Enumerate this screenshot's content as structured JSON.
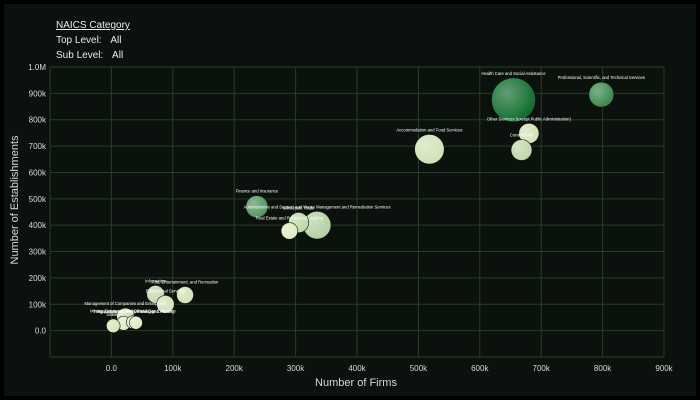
{
  "filters": {
    "header": "NAICS Category",
    "top_level_label": "Top Level:",
    "top_level_value": "All",
    "sub_level_label": "Sub Level:",
    "sub_level_value": "All"
  },
  "colors": {
    "background": "#0b120d",
    "grid": "#2b3a2e",
    "text": "#d6dbd8",
    "bubble_light": "#e9f2c8",
    "bubble_dark": "#0d6b2a"
  },
  "chart_data": {
    "type": "scatter",
    "title": "",
    "xlabel": "Number of Firms",
    "ylabel": "Number of Establishments",
    "xlim": [
      -100000,
      900000
    ],
    "ylim": [
      -100000,
      1000000
    ],
    "xticks": [
      0,
      100000,
      200000,
      300000,
      400000,
      500000,
      600000,
      700000,
      800000,
      900000
    ],
    "xtick_labels": [
      "0.0",
      "100k",
      "200k",
      "300k",
      "400k",
      "500k",
      "600k",
      "700k",
      "800k",
      "900k"
    ],
    "yticks": [
      0,
      100000,
      200000,
      300000,
      400000,
      500000,
      600000,
      700000,
      800000,
      900000,
      1000000
    ],
    "ytick_labels": [
      "0.0",
      "100k",
      "200k",
      "300k",
      "400k",
      "500k",
      "600k",
      "700k",
      "800k",
      "900k",
      "1.0M"
    ],
    "grid": true,
    "note": "bubble size and color depth represent relative magnitude (darker green = larger)",
    "points": [
      {
        "label": "Health Care and Social Assistance",
        "x": 655000,
        "y": 875000,
        "size": 1.0,
        "shade": 1.0
      },
      {
        "label": "Professional, Scientific, and Technical Services",
        "x": 798000,
        "y": 895000,
        "size": 0.47,
        "shade": 0.8
      },
      {
        "label": "Accommodation and Food Services",
        "x": 518000,
        "y": 688000,
        "size": 0.6,
        "shade": 0.12
      },
      {
        "label": "Other Services (except Public Administration)",
        "x": 680000,
        "y": 748000,
        "size": 0.34,
        "shade": 0.12
      },
      {
        "label": "Construction",
        "x": 668000,
        "y": 685000,
        "size": 0.36,
        "shade": 0.2
      },
      {
        "label": "Finance and Insurance",
        "x": 237000,
        "y": 470000,
        "size": 0.39,
        "shade": 0.7
      },
      {
        "label": "Administrative and Support and Waste Management and Remediation Services",
        "x": 335000,
        "y": 400000,
        "size": 0.55,
        "shade": 0.25
      },
      {
        "label": "Wholesale Trade",
        "x": 305000,
        "y": 410000,
        "size": 0.34,
        "shade": 0.2
      },
      {
        "label": "Real Estate and Rental and Leasing",
        "x": 290000,
        "y": 378000,
        "size": 0.24,
        "shade": 0.05
      },
      {
        "label": "Information",
        "x": 72000,
        "y": 138000,
        "size": 0.27,
        "shade": 0.18
      },
      {
        "label": "Arts, Entertainment, and Recreation",
        "x": 120000,
        "y": 135000,
        "size": 0.25,
        "shade": 0.12
      },
      {
        "label": "Educational Services",
        "x": 88000,
        "y": 100000,
        "size": 0.27,
        "shade": 0.12
      },
      {
        "label": "Management of Companies and Enterprises",
        "x": 23000,
        "y": 52000,
        "size": 0.27,
        "shade": 0.15
      },
      {
        "label": "Transportation and Warehousing",
        "x": 20000,
        "y": 28000,
        "size": 0.17,
        "shade": 0.05
      },
      {
        "label": "Mining, Quarrying, and Oil and Gas Extraction",
        "x": 35000,
        "y": 32000,
        "size": 0.14,
        "shade": 0.05
      },
      {
        "label": "Agriculture, Forestry, Fishing and Hunting",
        "x": 40000,
        "y": 30000,
        "size": 0.14,
        "shade": 0.05
      },
      {
        "label": "Utilities",
        "x": 3000,
        "y": 18000,
        "size": 0.16,
        "shade": 0.1
      }
    ]
  }
}
